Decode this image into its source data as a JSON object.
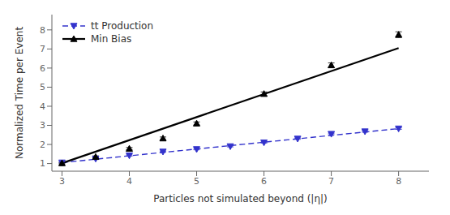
{
  "chart_data": {
    "type": "scatter",
    "xlabel": "Particles not simulated beyond (|η|)",
    "ylabel": "Normalized Time per Event",
    "xlim": [
      2.85,
      8.45
    ],
    "ylim": [
      0.6,
      8.8
    ],
    "xticks": [
      3,
      4,
      5,
      6,
      7,
      8
    ],
    "yticks": [
      1,
      2,
      3,
      4,
      5,
      6,
      7,
      8
    ],
    "grid": false,
    "legend": "upper left",
    "series": [
      {
        "name": "tt Production",
        "color": "#3333cc",
        "marker": "triangle-down",
        "line_style": "dashed",
        "x": [
          3.0,
          3.5,
          4.0,
          4.5,
          5.0,
          5.5,
          6.0,
          6.5,
          7.0,
          7.5,
          8.0
        ],
        "values": [
          1.05,
          1.25,
          1.42,
          1.62,
          1.75,
          1.9,
          2.1,
          2.3,
          2.55,
          2.68,
          2.83
        ],
        "errors": [
          0.03,
          0.03,
          0.03,
          0.03,
          0.03,
          0.03,
          0.03,
          0.03,
          0.04,
          0.04,
          0.04
        ],
        "fit": {
          "x": [
            3.0,
            8.0
          ],
          "values": [
            1.05,
            2.83
          ]
        }
      },
      {
        "name": "Min Bias",
        "color": "#000000",
        "marker": "triangle-up",
        "line_style": "solid",
        "x": [
          3.0,
          3.5,
          4.0,
          4.5,
          5.0,
          6.0,
          7.0,
          8.0
        ],
        "values": [
          1.02,
          1.35,
          1.78,
          2.32,
          3.1,
          4.65,
          6.15,
          7.75
        ],
        "errors": [
          0.04,
          0.05,
          0.06,
          0.07,
          0.08,
          0.1,
          0.12,
          0.15
        ],
        "fit": {
          "x": [
            3.0,
            8.0
          ],
          "values": [
            1.02,
            7.05
          ]
        }
      }
    ]
  }
}
